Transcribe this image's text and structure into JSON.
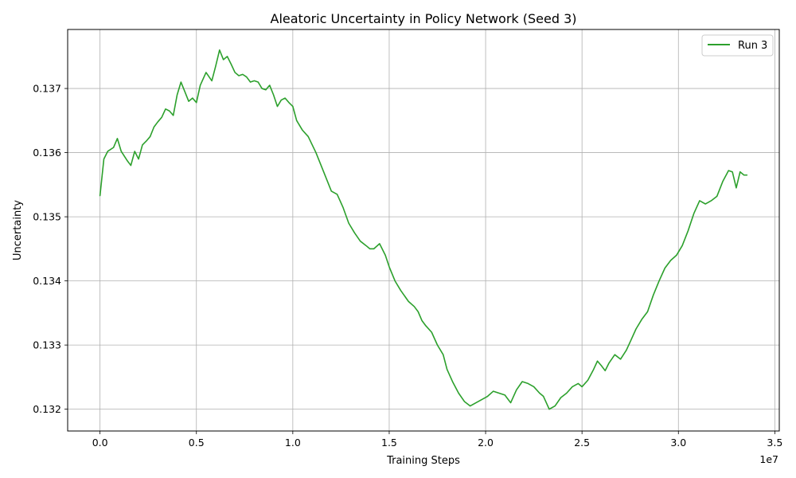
{
  "chart_data": {
    "type": "line",
    "title": "Aleatoric Uncertainty in Policy Network (Seed 3)",
    "xlabel": "Training Steps",
    "ylabel": "Uncertainty",
    "x_offset_label": "1e7",
    "xlim": [
      -1677721,
      35232153
    ],
    "ylim": [
      0.13166,
      0.13792
    ],
    "xticks": [
      0,
      5000000,
      10000000,
      15000000,
      20000000,
      25000000,
      30000000,
      35000000
    ],
    "xtick_labels": [
      "0.0",
      "0.5",
      "1.0",
      "1.5",
      "2.0",
      "2.5",
      "3.0",
      "3.5"
    ],
    "yticks": [
      0.132,
      0.133,
      0.134,
      0.135,
      0.136,
      0.137
    ],
    "ytick_labels": [
      "0.132",
      "0.133",
      "0.134",
      "0.135",
      "0.136",
      "0.137"
    ],
    "grid": true,
    "legend_position": "top-right",
    "series": [
      {
        "name": "Run 3",
        "color": "#2ca02c",
        "x": [
          0,
          200000,
          400000,
          700000,
          900000,
          1100000,
          1400000,
          1600000,
          1800000,
          2000000,
          2200000,
          2400000,
          2600000,
          2800000,
          3000000,
          3200000,
          3400000,
          3600000,
          3800000,
          4000000,
          4200000,
          4400000,
          4600000,
          4800000,
          5000000,
          5200000,
          5500000,
          5800000,
          6000000,
          6200000,
          6400000,
          6600000,
          6800000,
          7000000,
          7200000,
          7400000,
          7600000,
          7800000,
          8000000,
          8200000,
          8400000,
          8600000,
          8800000,
          9000000,
          9200000,
          9400000,
          9600000,
          9800000,
          10000000,
          10200000,
          10500000,
          10800000,
          11200000,
          11600000,
          12000000,
          12300000,
          12600000,
          12900000,
          13200000,
          13500000,
          13800000,
          14000000,
          14200000,
          14500000,
          14800000,
          15000000,
          15300000,
          15600000,
          16000000,
          16300000,
          16500000,
          16700000,
          16900000,
          17200000,
          17500000,
          17800000,
          18000000,
          18300000,
          18600000,
          18900000,
          19200000,
          19500000,
          19800000,
          20100000,
          20400000,
          20700000,
          21000000,
          21300000,
          21600000,
          21900000,
          22200000,
          22500000,
          22800000,
          23000000,
          23300000,
          23600000,
          23900000,
          24200000,
          24500000,
          24800000,
          25000000,
          25300000,
          25600000,
          25800000,
          26000000,
          26200000,
          26400000,
          26700000,
          27000000,
          27300000,
          27500000,
          27800000,
          28100000,
          28400000,
          28700000,
          29000000,
          29300000,
          29600000,
          29900000,
          30200000,
          30500000,
          30800000,
          31100000,
          31400000,
          31700000,
          32000000,
          32300000,
          32600000,
          32800000,
          33000000,
          33200000,
          33400000,
          33554432
        ],
        "y": [
          0.13533,
          0.1359,
          0.13602,
          0.13608,
          0.13622,
          0.13602,
          0.13588,
          0.1358,
          0.13602,
          0.1359,
          0.13612,
          0.13618,
          0.13625,
          0.1364,
          0.13648,
          0.13655,
          0.13668,
          0.13665,
          0.13658,
          0.1369,
          0.1371,
          0.13695,
          0.1368,
          0.13685,
          0.13678,
          0.13705,
          0.13725,
          0.13712,
          0.13735,
          0.1376,
          0.13745,
          0.1375,
          0.13738,
          0.13725,
          0.1372,
          0.13722,
          0.13718,
          0.1371,
          0.13712,
          0.1371,
          0.137,
          0.13698,
          0.13705,
          0.1369,
          0.13672,
          0.13682,
          0.13685,
          0.13678,
          0.13672,
          0.1365,
          0.13635,
          0.13625,
          0.136,
          0.1357,
          0.1354,
          0.13535,
          0.13515,
          0.1349,
          0.13475,
          0.13462,
          0.13455,
          0.1345,
          0.1345,
          0.13458,
          0.1344,
          0.13422,
          0.134,
          0.13385,
          0.13368,
          0.1336,
          0.13352,
          0.13338,
          0.1333,
          0.1332,
          0.133,
          0.13285,
          0.13262,
          0.13242,
          0.13225,
          0.13212,
          0.13205,
          0.1321,
          0.13215,
          0.1322,
          0.13228,
          0.13225,
          0.13222,
          0.1321,
          0.1323,
          0.13243,
          0.1324,
          0.13235,
          0.13225,
          0.1322,
          0.132,
          0.13205,
          0.13218,
          0.13225,
          0.13235,
          0.1324,
          0.13235,
          0.13245,
          0.13262,
          0.13275,
          0.13268,
          0.1326,
          0.13272,
          0.13285,
          0.13278,
          0.13292,
          0.13305,
          0.13325,
          0.1334,
          0.13352,
          0.13378,
          0.134,
          0.1342,
          0.13432,
          0.1344,
          0.13455,
          0.13478,
          0.13505,
          0.13525,
          0.1352,
          0.13525,
          0.13532,
          0.13555,
          0.13572,
          0.1357,
          0.13545,
          0.1357,
          0.13565,
          0.13565
        ]
      }
    ]
  }
}
